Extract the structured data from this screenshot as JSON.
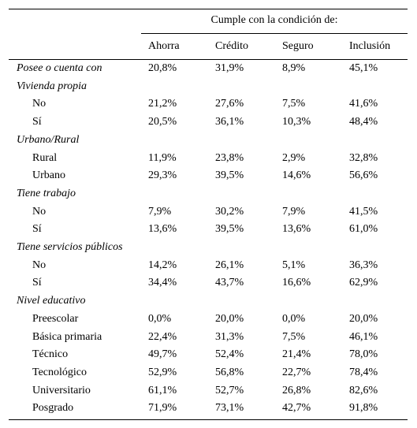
{
  "table": {
    "group_header": "Cumple con la condición de:",
    "columns": [
      "Ahorra",
      "Crédito",
      "Seguro",
      "Inclusión"
    ],
    "rows": [
      {
        "label": "Posee o cuenta con",
        "kind": "section",
        "values": [
          "20,8%",
          "31,9%",
          "8,9%",
          "45,1%"
        ]
      },
      {
        "label": "Vivienda propia",
        "kind": "section",
        "values": []
      },
      {
        "label": "No",
        "kind": "sub",
        "values": [
          "21,2%",
          "27,6%",
          "7,5%",
          "41,6%"
        ]
      },
      {
        "label": "Sí",
        "kind": "sub",
        "values": [
          "20,5%",
          "36,1%",
          "10,3%",
          "48,4%"
        ]
      },
      {
        "label": "Urbano/Rural",
        "kind": "section",
        "values": []
      },
      {
        "label": "Rural",
        "kind": "sub",
        "values": [
          "11,9%",
          "23,8%",
          "2,9%",
          "32,8%"
        ]
      },
      {
        "label": "Urbano",
        "kind": "sub",
        "values": [
          "29,3%",
          "39,5%",
          "14,6%",
          "56,6%"
        ]
      },
      {
        "label": "Tiene trabajo",
        "kind": "section",
        "values": []
      },
      {
        "label": "No",
        "kind": "sub",
        "values": [
          "7,9%",
          "30,2%",
          "7,9%",
          "41,5%"
        ]
      },
      {
        "label": "Sí",
        "kind": "sub",
        "values": [
          "13,6%",
          "39,5%",
          "13,6%",
          "61,0%"
        ]
      },
      {
        "label": "Tiene servicios públicos",
        "kind": "section",
        "values": []
      },
      {
        "label": "No",
        "kind": "sub",
        "values": [
          "14,2%",
          "26,1%",
          "5,1%",
          "36,3%"
        ]
      },
      {
        "label": "Sí",
        "kind": "sub",
        "values": [
          "34,4%",
          "43,7%",
          "16,6%",
          "62,9%"
        ]
      },
      {
        "label": "Nivel educativo",
        "kind": "section",
        "values": []
      },
      {
        "label": "Preescolar",
        "kind": "sub",
        "values": [
          "0,0%",
          "20,0%",
          "0,0%",
          "20,0%"
        ]
      },
      {
        "label": "Básica primaria",
        "kind": "sub",
        "values": [
          "22,4%",
          "31,3%",
          "7,5%",
          "46,1%"
        ]
      },
      {
        "label": "Técnico",
        "kind": "sub",
        "values": [
          "49,7%",
          "52,4%",
          "21,4%",
          "78,0%"
        ]
      },
      {
        "label": "Tecnológico",
        "kind": "sub",
        "values": [
          "52,9%",
          "56,8%",
          "22,7%",
          "78,4%"
        ]
      },
      {
        "label": "Universitario",
        "kind": "sub",
        "values": [
          "61,1%",
          "52,7%",
          "26,8%",
          "82,6%"
        ]
      },
      {
        "label": "Posgrado",
        "kind": "sub",
        "values": [
          "71,9%",
          "73,1%",
          "42,7%",
          "91,8%"
        ]
      }
    ]
  }
}
